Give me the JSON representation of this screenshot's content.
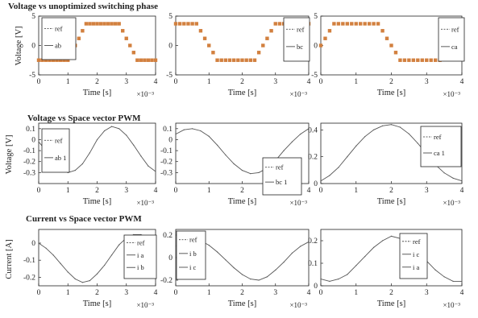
{
  "rows": [
    {
      "title": "Voltage vs unoptimized switching phase",
      "ylabel": "Voltage [V]"
    },
    {
      "title": "Voltage vs Space vector PWM",
      "ylabel": "Voltage [V]"
    },
    {
      "title": "Current vs Space vector PWM",
      "ylabel": "Current [A]"
    }
  ],
  "xlabel": "Time [s]",
  "x_exponent": "×10⁻³",
  "colors": {
    "line": "#555555",
    "step_marker": "#d2803f",
    "frame": "#222222",
    "legend_ref": "#333333"
  },
  "chart_data": [
    {
      "type": "scatter",
      "row": 0,
      "col": 0,
      "marker": "square",
      "title": "Voltage vs unoptimized switching phase",
      "ylabel": "Voltage [V]",
      "xlabel": "Time [s]",
      "xlim": [
        0,
        4
      ],
      "ylim": [
        -5,
        5
      ],
      "xticks": [
        "0",
        "1",
        "2",
        "3",
        "4"
      ],
      "yticks": [
        "5",
        "0",
        "-5"
      ],
      "series": [
        {
          "x": [
            0,
            0.125,
            0.25,
            0.375,
            0.5,
            0.625,
            0.75,
            0.875,
            1.0,
            1.125,
            1.25,
            1.375,
            1.5,
            1.625,
            1.75,
            1.875,
            2.0,
            2.125,
            2.25,
            2.375,
            2.5,
            2.625,
            2.75,
            2.875,
            3.0,
            3.125,
            3.25,
            3.375,
            3.5,
            3.625,
            3.75,
            3.875,
            4.0
          ],
          "values": [
            -2.5,
            -2.5,
            -2.5,
            -2.5,
            -2.5,
            -2.5,
            -2.5,
            -2.5,
            -2.5,
            -1.2,
            0,
            1.2,
            2.5,
            3.7,
            3.7,
            3.7,
            3.7,
            3.7,
            3.7,
            3.7,
            3.7,
            3.7,
            3.7,
            2.5,
            1.2,
            0,
            -1.2,
            -2.5,
            -2.5,
            -2.5,
            -2.5,
            -2.5,
            -2.5
          ]
        }
      ],
      "legend": {
        "position": "top-left",
        "entries": [
          "ref",
          "ab"
        ]
      }
    },
    {
      "type": "scatter",
      "row": 0,
      "col": 1,
      "marker": "square",
      "xlabel": "Time [s]",
      "xlim": [
        0,
        4
      ],
      "ylim": [
        -5,
        5
      ],
      "xticks": [
        "0",
        "1",
        "2",
        "3",
        "4"
      ],
      "yticks": [
        "5",
        "0",
        "-5"
      ],
      "series": [
        {
          "x": [
            0,
            0.125,
            0.25,
            0.375,
            0.5,
            0.625,
            0.75,
            0.875,
            1.0,
            1.125,
            1.25,
            1.375,
            1.5,
            1.625,
            1.75,
            1.875,
            2.0,
            2.125,
            2.25,
            2.375,
            2.5,
            2.625,
            2.75,
            2.875,
            3.0,
            3.125,
            3.25,
            3.375,
            3.5,
            3.625,
            3.75,
            3.875,
            4.0
          ],
          "values": [
            3.7,
            3.7,
            3.7,
            3.7,
            3.7,
            3.7,
            2.5,
            1.2,
            0,
            -1.2,
            -2.5,
            -2.5,
            -2.5,
            -2.5,
            -2.5,
            -2.5,
            -2.5,
            -2.5,
            -2.5,
            -2.5,
            -1.2,
            0,
            1.2,
            2.5,
            3.7,
            3.7,
            3.7,
            3.7,
            3.7,
            3.7,
            3.7,
            3.7,
            3.7
          ]
        }
      ],
      "legend": {
        "position": "top-right",
        "entries": [
          "ref",
          "bc"
        ]
      }
    },
    {
      "type": "scatter",
      "row": 0,
      "col": 2,
      "marker": "square",
      "xlabel": "Time [s]",
      "xlim": [
        0,
        4
      ],
      "ylim": [
        -5,
        5
      ],
      "xticks": [
        "0",
        "1",
        "2",
        "3",
        "4"
      ],
      "yticks": [
        "5",
        "0",
        "-5"
      ],
      "series": [
        {
          "x": [
            0,
            0.125,
            0.25,
            0.375,
            0.5,
            0.625,
            0.75,
            0.875,
            1.0,
            1.125,
            1.25,
            1.375,
            1.5,
            1.625,
            1.75,
            1.875,
            2.0,
            2.125,
            2.25,
            2.375,
            2.5,
            2.625,
            2.75,
            2.875,
            3.0,
            3.125,
            3.25,
            3.375,
            3.5,
            3.625,
            3.75,
            3.875,
            4.0
          ],
          "values": [
            0,
            1.2,
            2.5,
            3.7,
            3.7,
            3.7,
            3.7,
            3.7,
            3.7,
            3.7,
            3.7,
            3.7,
            3.7,
            3.7,
            2.5,
            1.2,
            0,
            -1.2,
            -2.5,
            -2.5,
            -2.5,
            -2.5,
            -2.5,
            -2.5,
            -2.5,
            -2.5,
            -2.5,
            -2.5,
            -1.2,
            0,
            0,
            0,
            0
          ]
        }
      ],
      "legend": {
        "position": "top-right",
        "entries": [
          "ref",
          "ca"
        ]
      }
    },
    {
      "type": "line",
      "row": 1,
      "col": 0,
      "title": "Voltage vs Space vector PWM",
      "ylabel": "Voltage [V]",
      "xlabel": "Time [s]",
      "xlim": [
        0,
        4
      ],
      "ylim": [
        -0.4,
        0.15
      ],
      "xticks": [
        "0",
        "1",
        "2",
        "3",
        "4"
      ],
      "yticks": [
        "0.1",
        "0",
        "-0.1",
        "-0.2",
        "-0.3"
      ],
      "series": [
        {
          "x": [
            0,
            0.25,
            0.5,
            0.75,
            1.0,
            1.25,
            1.5,
            1.75,
            2.0,
            2.25,
            2.5,
            2.75,
            3.0,
            3.25,
            3.5,
            3.75,
            4.0
          ],
          "values": [
            -0.02,
            -0.1,
            -0.2,
            -0.27,
            -0.3,
            -0.28,
            -0.22,
            -0.12,
            0.0,
            0.08,
            0.12,
            0.1,
            0.04,
            -0.05,
            -0.15,
            -0.24,
            -0.29
          ]
        }
      ],
      "legend": {
        "position": "top-left",
        "entries": [
          "ref",
          "ab 1"
        ]
      }
    },
    {
      "type": "line",
      "row": 1,
      "col": 1,
      "xlabel": "Time [s]",
      "xlim": [
        0,
        4
      ],
      "ylim": [
        -0.4,
        0.15
      ],
      "xticks": [
        "0",
        "1",
        "2",
        "3",
        "4"
      ],
      "yticks": [
        "0.1",
        "0",
        "-0.1",
        "-0.2",
        "-0.3"
      ],
      "series": [
        {
          "x": [
            0,
            0.25,
            0.5,
            0.75,
            1.0,
            1.25,
            1.5,
            1.75,
            2.0,
            2.25,
            2.5,
            2.75,
            3.0,
            3.25,
            3.5,
            3.75,
            4.0
          ],
          "values": [
            0.05,
            0.09,
            0.1,
            0.08,
            0.03,
            -0.05,
            -0.14,
            -0.22,
            -0.28,
            -0.31,
            -0.3,
            -0.26,
            -0.19,
            -0.1,
            -0.02,
            0.05,
            0.1
          ]
        }
      ],
      "legend": {
        "position": "right",
        "entries": [
          "ref",
          "bc 1"
        ]
      }
    },
    {
      "type": "line",
      "row": 1,
      "col": 2,
      "xlabel": "Time [s]",
      "xlim": [
        0,
        4
      ],
      "ylim": [
        0,
        0.45
      ],
      "xticks": [
        "0",
        "1",
        "2",
        "3",
        "4"
      ],
      "yticks": [
        "0.4",
        "0.2",
        "0"
      ],
      "series": [
        {
          "x": [
            0,
            0.25,
            0.5,
            0.75,
            1.0,
            1.25,
            1.5,
            1.75,
            2.0,
            2.25,
            2.5,
            2.75,
            3.0,
            3.25,
            3.5,
            3.75,
            4.0
          ],
          "values": [
            0.02,
            0.06,
            0.12,
            0.2,
            0.28,
            0.35,
            0.4,
            0.43,
            0.44,
            0.42,
            0.37,
            0.3,
            0.22,
            0.14,
            0.08,
            0.04,
            0.02
          ]
        }
      ],
      "legend": {
        "position": "right",
        "entries": [
          "ref",
          "ca 1"
        ]
      }
    },
    {
      "type": "line",
      "row": 2,
      "col": 0,
      "title": "Current vs Space vector PWM",
      "ylabel": "Current [A]",
      "xlabel": "Time [s]",
      "xlim": [
        0,
        4
      ],
      "ylim": [
        -0.25,
        0.08
      ],
      "xticks": [
        "0",
        "1",
        "2",
        "3",
        "4"
      ],
      "yticks": [
        "0",
        "-0.1",
        "-0.2"
      ],
      "series": [
        {
          "x": [
            0,
            0.25,
            0.5,
            0.75,
            1.0,
            1.25,
            1.5,
            1.75,
            2.0,
            2.25,
            2.5,
            2.75,
            3.0,
            3.25,
            3.5,
            3.75,
            4.0
          ],
          "values": [
            0.0,
            -0.03,
            -0.07,
            -0.12,
            -0.17,
            -0.21,
            -0.23,
            -0.22,
            -0.18,
            -0.13,
            -0.07,
            -0.01,
            0.03,
            0.05,
            0.05,
            0.03,
            0.0
          ]
        }
      ],
      "legend": {
        "position": "right",
        "entries": [
          "ref",
          "i a",
          "i b"
        ]
      }
    },
    {
      "type": "line",
      "row": 2,
      "col": 1,
      "xlabel": "Time [s]",
      "xlim": [
        0,
        4
      ],
      "ylim": [
        -0.25,
        0.25
      ],
      "xticks": [
        "0",
        "1",
        "2",
        "3",
        "4"
      ],
      "yticks": [
        "0.2",
        "0",
        "-0.2"
      ],
      "series": [
        {
          "x": [
            0,
            0.25,
            0.5,
            0.75,
            1.0,
            1.25,
            1.5,
            1.75,
            2.0,
            2.25,
            2.5,
            2.75,
            3.0,
            3.25,
            3.5,
            3.75,
            4.0
          ],
          "values": [
            0.1,
            0.14,
            0.16,
            0.15,
            0.11,
            0.05,
            -0.02,
            -0.09,
            -0.15,
            -0.19,
            -0.2,
            -0.17,
            -0.11,
            -0.04,
            0.04,
            0.1,
            0.14
          ]
        }
      ],
      "legend": {
        "position": "top-left",
        "entries": [
          "ref",
          "i b",
          "i c"
        ]
      }
    },
    {
      "type": "line",
      "row": 2,
      "col": 2,
      "xlabel": "Time [s]",
      "xlim": [
        0,
        4
      ],
      "ylim": [
        0,
        0.25
      ],
      "xticks": [
        "0",
        "1",
        "2",
        "3",
        "4"
      ],
      "yticks": [
        "0.2",
        "0.1",
        "0"
      ],
      "series": [
        {
          "x": [
            0,
            0.25,
            0.5,
            0.75,
            1.0,
            1.25,
            1.5,
            1.75,
            2.0,
            2.25,
            2.5,
            2.75,
            3.0,
            3.25,
            3.5,
            3.75,
            4.0
          ],
          "values": [
            0.03,
            0.02,
            0.03,
            0.05,
            0.09,
            0.13,
            0.17,
            0.2,
            0.22,
            0.21,
            0.19,
            0.15,
            0.11,
            0.07,
            0.04,
            0.02,
            0.02
          ]
        }
      ],
      "legend": {
        "position": "center",
        "entries": [
          "ref",
          "i c",
          "i a"
        ]
      }
    }
  ]
}
